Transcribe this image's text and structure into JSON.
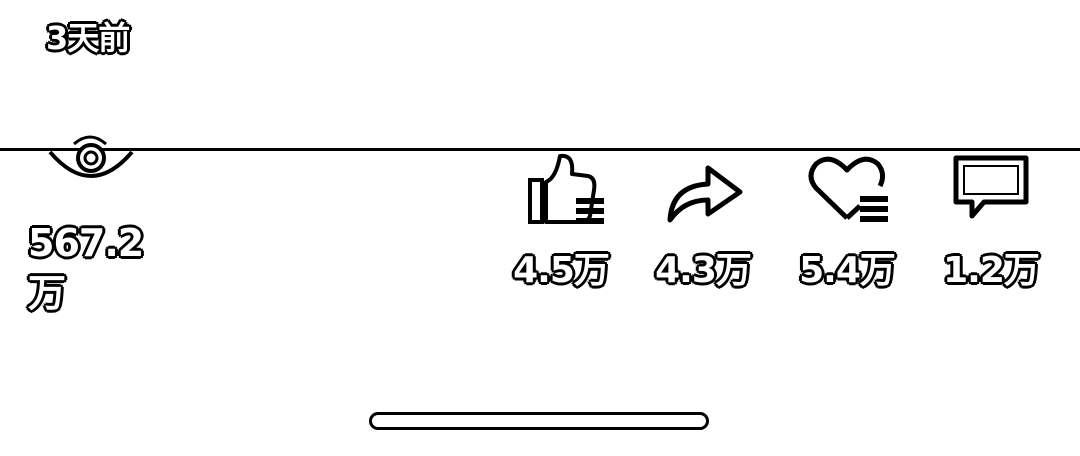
{
  "top_bar": {
    "text": "3天前"
  },
  "stats": {
    "views": {
      "value": "567.2万",
      "icon": "eye-icon"
    }
  },
  "actions": [
    {
      "name": "like",
      "icon": "thumbs-up-icon",
      "count": "4.5万"
    },
    {
      "name": "share",
      "icon": "share-arrow-icon",
      "count": "4.3万"
    },
    {
      "name": "favorite",
      "icon": "heart-list-icon",
      "count": "5.4万"
    },
    {
      "name": "comment",
      "icon": "comment-bubble-icon",
      "count": "1.2万"
    }
  ],
  "colors": {
    "outline": "#000000",
    "fill": "#ffffff"
  }
}
